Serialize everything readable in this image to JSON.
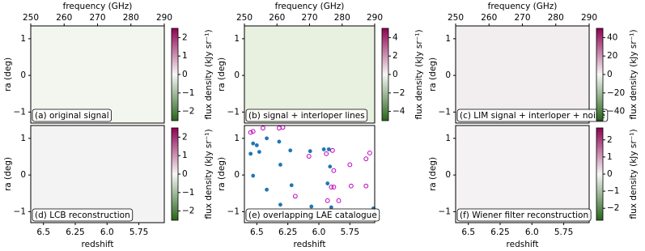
{
  "chart_data": [
    {
      "type": "heatmap",
      "label": "(a) original signal",
      "x2label": "frequency (GHz)",
      "x2lim": [
        250,
        290
      ],
      "x2ticks": [
        250,
        260,
        270,
        280,
        290
      ],
      "ylabel": "ra (deg)",
      "ylim": [
        -1.3,
        1.35
      ],
      "yticks": [
        1,
        0,
        {
          "value": -1,
          "label": "−1"
        }
      ],
      "clabel": "flux density (kJy sr⁻¹)",
      "clim": [
        -2.5,
        2.5
      ],
      "cticks": [
        2,
        1,
        0,
        {
          "value": -1,
          "label": "−1"
        },
        {
          "value": -2,
          "label": "−2"
        }
      ],
      "colormap": [
        "#276419",
        "#f7f7f7",
        "#8e0152"
      ]
    },
    {
      "type": "heatmap",
      "label": "(b) signal + interloper lines",
      "x2label": "frequency (GHz)",
      "x2lim": [
        250,
        290
      ],
      "x2ticks": [
        250,
        260,
        270,
        280,
        290
      ],
      "ylabel": "ra (deg)",
      "ylim": [
        -1.3,
        1.35
      ],
      "yticks": [
        1,
        0,
        {
          "value": -1,
          "label": "−1"
        }
      ],
      "clabel": "flux density (kJy sr⁻¹)",
      "clim": [
        -5,
        5
      ],
      "cticks": [
        4,
        2,
        0,
        {
          "value": -2,
          "label": "−2"
        },
        {
          "value": -4,
          "label": "−4"
        }
      ],
      "colormap": [
        "#276419",
        "#f7f7f7",
        "#8e0152"
      ]
    },
    {
      "type": "heatmap",
      "label": "(c) LIM signal + interloper + noise",
      "x2label": "frequency (GHz)",
      "x2lim": [
        250,
        290
      ],
      "x2ticks": [
        250,
        260,
        270,
        280,
        290
      ],
      "ylabel": "ra (deg)",
      "ylim": [
        -1.3,
        1.35
      ],
      "yticks": [
        1,
        0,
        {
          "value": -1,
          "label": "−1"
        }
      ],
      "clabel": "flux density (kJy sr⁻¹)",
      "clim": [
        -50,
        50
      ],
      "cticks": [
        40,
        20,
        0,
        {
          "value": -20,
          "label": "−20"
        },
        {
          "value": -40,
          "label": "−40"
        }
      ],
      "colormap": [
        "#276419",
        "#f7f7f7",
        "#8e0152"
      ]
    },
    {
      "type": "heatmap",
      "label": "(d) LCB reconstruction",
      "xlabel": "redshift",
      "xlim": [
        6.6,
        5.55
      ],
      "xticks": [
        6.5,
        6.25,
        {
          "value": 6.0,
          "label": "6.0"
        },
        5.75
      ],
      "ylabel": "ra (deg)",
      "ylim": [
        -1.3,
        1.35
      ],
      "yticks": [
        1,
        0,
        {
          "value": -1,
          "label": "−1"
        }
      ],
      "clabel": "flux density (kJy sr⁻¹)",
      "clim": [
        -2.5,
        2.5
      ],
      "cticks": [
        2,
        1,
        0,
        {
          "value": -1,
          "label": "−1"
        },
        {
          "value": -2,
          "label": "−2"
        }
      ],
      "colormap": [
        "#276419",
        "#f7f7f7",
        "#8e0152"
      ]
    },
    {
      "type": "scatter",
      "label": "(e) overlapping LAE catalogue",
      "xlabel": "redshift",
      "xlim": [
        6.6,
        5.55
      ],
      "xticks": [
        6.5,
        6.25,
        {
          "value": 6.0,
          "label": "6.0"
        },
        5.75
      ],
      "ylabel": "ra (deg)",
      "ylim": [
        -1.3,
        1.35
      ],
      "yticks": [
        1,
        0,
        {
          "value": -1,
          "label": "−1"
        }
      ],
      "series": [
        {
          "color": "#1f77b4",
          "filled": true,
          "x": [
            6.53,
            6.5,
            6.55,
            6.48,
            6.42,
            6.32,
            6.23,
            6.31,
            6.07,
            5.96,
            5.92,
            5.91,
            5.93,
            6.53,
            6.42,
            6.22,
            6.31,
            6.06,
            5.9,
            5.56
          ],
          "values": [
            0.86,
            0.81,
            0.58,
            0.63,
            1.0,
            0.91,
            0.67,
            0.28,
            0.65,
            0.7,
            0.7,
            0.23,
            -0.23,
            -0.02,
            -0.4,
            -0.28,
            -0.81,
            -0.86,
            -0.88,
            -0.91
          ]
        },
        {
          "color": "#c000c0",
          "filled": false,
          "x": [
            6.55,
            6.53,
            6.45,
            6.32,
            6.29,
            6.08,
            5.94,
            5.89,
            5.62,
            5.59,
            5.75,
            5.88,
            5.9,
            5.88,
            5.93,
            5.84,
            5.74,
            6.19,
            5.62
          ],
          "values": [
            1.16,
            1.19,
            1.28,
            1.28,
            1.3,
            0.51,
            0.58,
            0.67,
            0.44,
            0.6,
            0.28,
            0.12,
            -0.33,
            -0.33,
            -0.7,
            -0.7,
            -0.3,
            -0.58,
            -0.3
          ]
        }
      ]
    },
    {
      "type": "heatmap",
      "label": "(f) Wiener filter reconstruction",
      "xlabel": "redshift",
      "xlim": [
        6.6,
        5.55
      ],
      "xticks": [
        6.5,
        6.25,
        {
          "value": 6.0,
          "label": "6.0"
        },
        5.75
      ],
      "ylabel": "ra (deg)",
      "ylim": [
        -1.3,
        1.35
      ],
      "yticks": [
        1,
        0,
        {
          "value": -1,
          "label": "−1"
        }
      ],
      "clabel": "flux density (kJy sr⁻¹)",
      "clim": [
        -2.7,
        2.7
      ],
      "cticks": [
        2,
        1,
        0,
        {
          "value": -1,
          "label": "−1"
        },
        {
          "value": -2,
          "label": "−2"
        }
      ],
      "colormap": [
        "#276419",
        "#f7f7f7",
        "#8e0152"
      ]
    }
  ]
}
